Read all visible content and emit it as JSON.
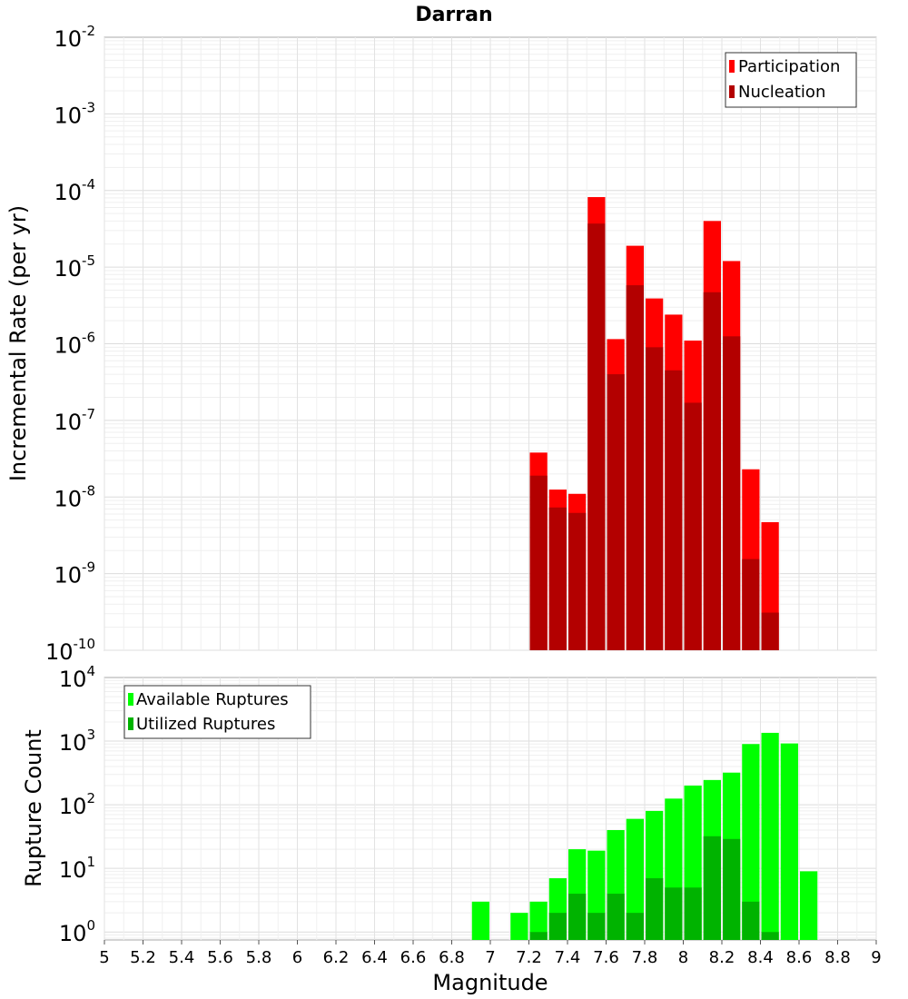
{
  "title": "Darran",
  "chart_data": [
    {
      "type": "bar",
      "title": "Darran",
      "ylabel": "Incremental Rate (per yr)",
      "xlabel": "",
      "yscale": "log",
      "ylim": [
        1e-10,
        0.01
      ],
      "xlim": [
        5,
        9
      ],
      "grid": true,
      "legend_position": "top-right",
      "colors": {
        "Participation": "#ff0000",
        "Nucleation": "#b30000"
      },
      "legend": [
        "Participation",
        "Nucleation"
      ],
      "series": [
        {
          "name": "Participation",
          "x": [
            7.25,
            7.35,
            7.45,
            7.55,
            7.65,
            7.75,
            7.85,
            7.95,
            8.05,
            8.15,
            8.25,
            8.35,
            8.45
          ],
          "values": [
            3.8e-08,
            1.25e-08,
            1.1e-08,
            8.2e-05,
            1.15e-06,
            1.9e-05,
            3.9e-06,
            2.4e-06,
            1.1e-06,
            4e-05,
            1.2e-05,
            2.3e-08,
            4.7e-09
          ]
        },
        {
          "name": "Nucleation",
          "x": [
            7.25,
            7.35,
            7.45,
            7.55,
            7.65,
            7.75,
            7.85,
            7.95,
            8.05,
            8.15,
            8.25,
            8.35,
            8.45
          ],
          "values": [
            1.9e-08,
            7.3e-09,
            6.2e-09,
            3.7e-05,
            4e-07,
            5.8e-06,
            9e-07,
            4.5e-07,
            1.7e-07,
            4.7e-06,
            1.25e-06,
            1.55e-09,
            3.1e-10
          ]
        }
      ]
    },
    {
      "type": "bar",
      "ylabel": "Rupture Count",
      "xlabel": "Magnitude",
      "yscale": "log",
      "ylim": [
        0.75,
        10000
      ],
      "xlim": [
        5,
        9
      ],
      "grid": true,
      "legend_position": "top-left",
      "colors": {
        "Available Ruptures": "#00ff00",
        "Utilized Ruptures": "#00b300"
      },
      "legend": [
        "Available Ruptures",
        "Utilized Ruptures"
      ],
      "xticks": [
        "5",
        "5.2",
        "5.4",
        "5.6",
        "5.8",
        "6",
        "6.2",
        "6.4",
        "6.6",
        "6.8",
        "7",
        "7.2",
        "7.4",
        "7.6",
        "7.8",
        "8",
        "8.2",
        "8.4",
        "8.6",
        "8.8",
        "9"
      ],
      "series": [
        {
          "name": "Available Ruptures",
          "x": [
            6.95,
            7.15,
            7.25,
            7.35,
            7.45,
            7.55,
            7.65,
            7.75,
            7.85,
            7.95,
            8.05,
            8.15,
            8.25,
            8.35,
            8.45,
            8.55,
            8.65
          ],
          "values": [
            3,
            2,
            3,
            7,
            20,
            19,
            40,
            60,
            80,
            125,
            200,
            245,
            320,
            900,
            1350,
            920,
            9
          ]
        },
        {
          "name": "Utilized Ruptures",
          "x": [
            7.25,
            7.35,
            7.45,
            7.55,
            7.65,
            7.75,
            7.85,
            7.95,
            8.05,
            8.15,
            8.25,
            8.35,
            8.45
          ],
          "values": [
            1,
            2,
            4,
            2,
            4,
            2,
            7,
            5,
            5,
            32,
            29,
            3,
            1
          ]
        }
      ]
    }
  ]
}
